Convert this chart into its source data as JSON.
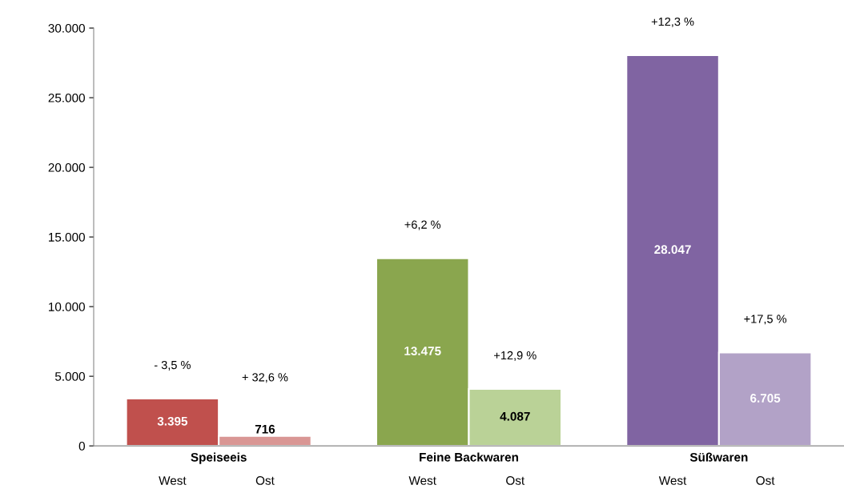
{
  "chart_data": {
    "type": "bar",
    "categories": [
      "Speiseeis",
      "Feine Backwaren",
      "Süßwaren"
    ],
    "series": [
      {
        "name": "West",
        "colors": [
          "#c0504d",
          "#8aa64e",
          "#8064a2"
        ],
        "values": [
          3395,
          13475,
          28047
        ],
        "value_labels": [
          "3.395",
          "13.475",
          "28.047"
        ]
      },
      {
        "name": "Ost",
        "colors": [
          "#d99694",
          "#bad297",
          "#b2a2c7"
        ],
        "values": [
          716,
          4087,
          6705
        ],
        "value_labels": [
          "716",
          "4.087",
          "6.705"
        ]
      }
    ],
    "annotations": [
      "- 3,5 %",
      "+ 32,6 %",
      "+6,2 %",
      "+12,9 %",
      "+12,3 %",
      "+17,5 %"
    ],
    "ylim": [
      0,
      30000
    ],
    "yticks": [
      0,
      {
        "value": 5000,
        "label": "5.000"
      },
      {
        "value": 10000,
        "label": "10.000"
      },
      {
        "value": 15000,
        "label": "15.000"
      },
      {
        "value": 20000,
        "label": "20.000"
      },
      {
        "value": 25000,
        "label": "25.000"
      },
      {
        "value": 30000,
        "label": "30.000"
      }
    ],
    "grid": false
  }
}
